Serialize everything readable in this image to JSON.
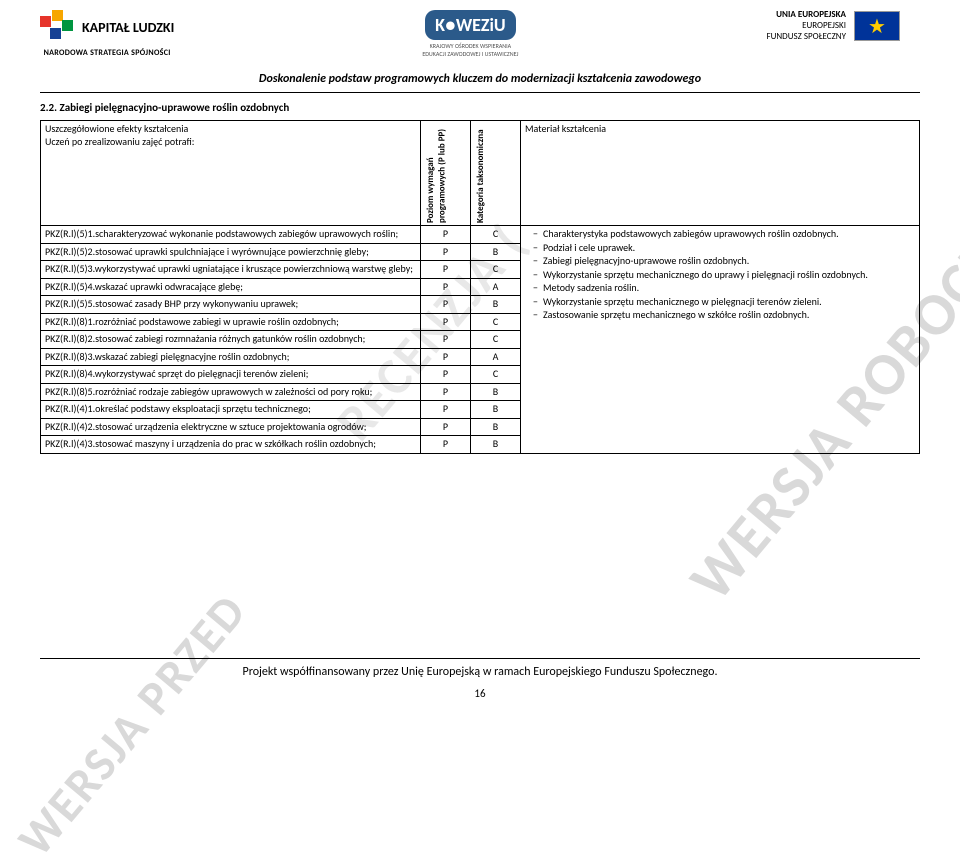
{
  "header": {
    "kapital": "KAPITAŁ LUDZKI",
    "ns": "NARODOWA STRATEGIA SPÓJNOŚCI",
    "koweziu": "K●WEZiU",
    "koweziu_sub": "KRAJOWY OŚRODEK WSPIERANIA\nEDUKACJI ZAWODOWEJ I USTAWICZNEJ",
    "eu1": "UNIA EUROPEJSKA",
    "eu2": "EUROPEJSKI",
    "eu3": "FUNDUSZ SPOŁECZNY",
    "star_colors": [
      "#e6342a",
      "#f7a600",
      "#009540",
      "#164194"
    ]
  },
  "banner": "Doskonalenie podstaw programowych kluczem do modernizacji kształcenia zawodowego",
  "watermark": "WERSJA ROBOCZA)",
  "watermark_mid": "RECENZJA (",
  "watermark2": "WERSJA PRZED",
  "section_title": "2.2. Zabiegi pielęgnacyjno-uprawowe roślin ozdobnych",
  "table": {
    "h1": "Uszczegółowione efekty kształcenia\nUczeń po zrealizowaniu zajęć potrafi:",
    "h2": "Poziom wymagań programowych (P lub PP)",
    "h3": "Kategoria taksonomiczna",
    "h4": "Materiał kształcenia",
    "rows": [
      {
        "d": "PKZ(R.l)(5)1.scharakteryzować wykonanie podstawowych zabiegów uprawowych roślin;",
        "p": "P",
        "k": "C"
      },
      {
        "d": "PKZ(R.l)(5)2.stosować uprawki spulchniające i wyrównujące powierzchnię gleby;",
        "p": "P",
        "k": "B"
      },
      {
        "d": "PKZ(R.l)(5)3.wykorzystywać uprawki ugniatające i kruszące powierzchniową warstwę gleby;",
        "p": "P",
        "k": "C"
      },
      {
        "d": "PKZ(R.l)(5)4.wskazać uprawki odwracające glebę;",
        "p": "P",
        "k": "A"
      },
      {
        "d": "PKZ(R.l)(5)5.stosować  zasady BHP przy wykonywaniu uprawek;",
        "p": "P",
        "k": "B"
      },
      {
        "d": "PKZ(R.l)(8)1.rozróżniać podstawowe zabiegi w uprawie roślin ozdobnych;",
        "p": "P",
        "k": "C"
      },
      {
        "d": "PKZ(R.l)(8)2.stosować zabiegi  rozmnażania różnych gatunków roślin ozdobnych;",
        "p": "P",
        "k": "C"
      },
      {
        "d": "PKZ(R.l)(8)3.wskazać zabiegi pielęgnacyjne roślin ozdobnych;",
        "p": "P",
        "k": "A"
      },
      {
        "d": "PKZ(R.l)(8)4.wykorzystywać sprzęt do pielęgnacji terenów zieleni;",
        "p": "P",
        "k": "C"
      },
      {
        "d": "PKZ(R.l)(8)5.rozróżniać rodzaje zabiegów uprawowych w zależności od pory roku;",
        "p": "P",
        "k": "B"
      },
      {
        "d": "PKZ(R.l)(4)1.określać podstawy eksploatacji sprzętu technicznego;",
        "p": "P",
        "k": "B"
      },
      {
        "d": "PKZ(R.l)(4)2.stosować urządzenia elektryczne w sztuce projektowania ogrodów;",
        "p": "P",
        "k": "B"
      },
      {
        "d": "PKZ(R.l)(4)3.stosować maszyny i urządzenia do prac w szkółkach roślin ozdobnych;",
        "p": "P",
        "k": "B"
      }
    ],
    "materials": [
      "Charakterystyka podstawowych zabiegów uprawowych roślin ozdobnych.",
      "Podział i cele uprawek.",
      "Zabiegi pielęgnacyjno-uprawowe roślin ozdobnych.",
      "Wykorzystanie sprzętu mechanicznego do uprawy i pielęgnacji roślin ozdobnych.",
      "Metody sadzenia roślin.",
      "Wykorzystanie sprzętu mechanicznego w pielęgnacji terenów zieleni.",
      "Zastosowanie sprzętu mechanicznego w szkółce roślin ozdobnych."
    ]
  },
  "footer": "Projekt współfinansowany przez Unię Europejską w ramach Europejskiego Funduszu Społecznego.",
  "page": "16"
}
